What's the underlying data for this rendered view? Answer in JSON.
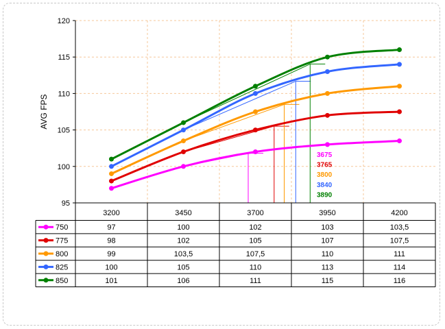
{
  "chart_data": {
    "type": "line",
    "title": "",
    "ylabel": "AVG FPS",
    "xlabel": "",
    "categories": [
      "3200",
      "3450",
      "3700",
      "3950",
      "4200"
    ],
    "ylim": [
      95,
      120
    ],
    "yticks": [
      95,
      100,
      105,
      110,
      115,
      120
    ],
    "grid": true,
    "series": [
      {
        "name": "750",
        "color": "#ff00ff",
        "values": [
          97,
          100,
          102,
          103,
          103.5
        ],
        "labels": [
          "97",
          "100",
          "102",
          "103",
          "103,5"
        ]
      },
      {
        "name": "775",
        "color": "#e00000",
        "values": [
          98,
          102,
          105,
          107,
          107.5
        ],
        "labels": [
          "98",
          "102",
          "105",
          "107",
          "107,5"
        ]
      },
      {
        "name": "800",
        "color": "#ff9900",
        "values": [
          99,
          103.5,
          107.5,
          110,
          111
        ],
        "labels": [
          "99",
          "103,5",
          "107,5",
          "110",
          "111"
        ]
      },
      {
        "name": "825",
        "color": "#3366ff",
        "values": [
          100,
          105,
          110,
          113,
          114
        ],
        "labels": [
          "100",
          "105",
          "110",
          "113",
          "114"
        ]
      },
      {
        "name": "850",
        "color": "#008000",
        "values": [
          101,
          106,
          111,
          115,
          116
        ],
        "labels": [
          "101",
          "106",
          "111",
          "115",
          "116"
        ]
      }
    ],
    "annotations": [
      {
        "text": "3675",
        "x": 3675,
        "series": "750"
      },
      {
        "text": "3765",
        "x": 3765,
        "series": "775"
      },
      {
        "text": "3800",
        "x": 3800,
        "series": "800"
      },
      {
        "text": "3840",
        "x": 3840,
        "series": "825"
      },
      {
        "text": "3890",
        "x": 3890,
        "series": "850"
      }
    ]
  }
}
